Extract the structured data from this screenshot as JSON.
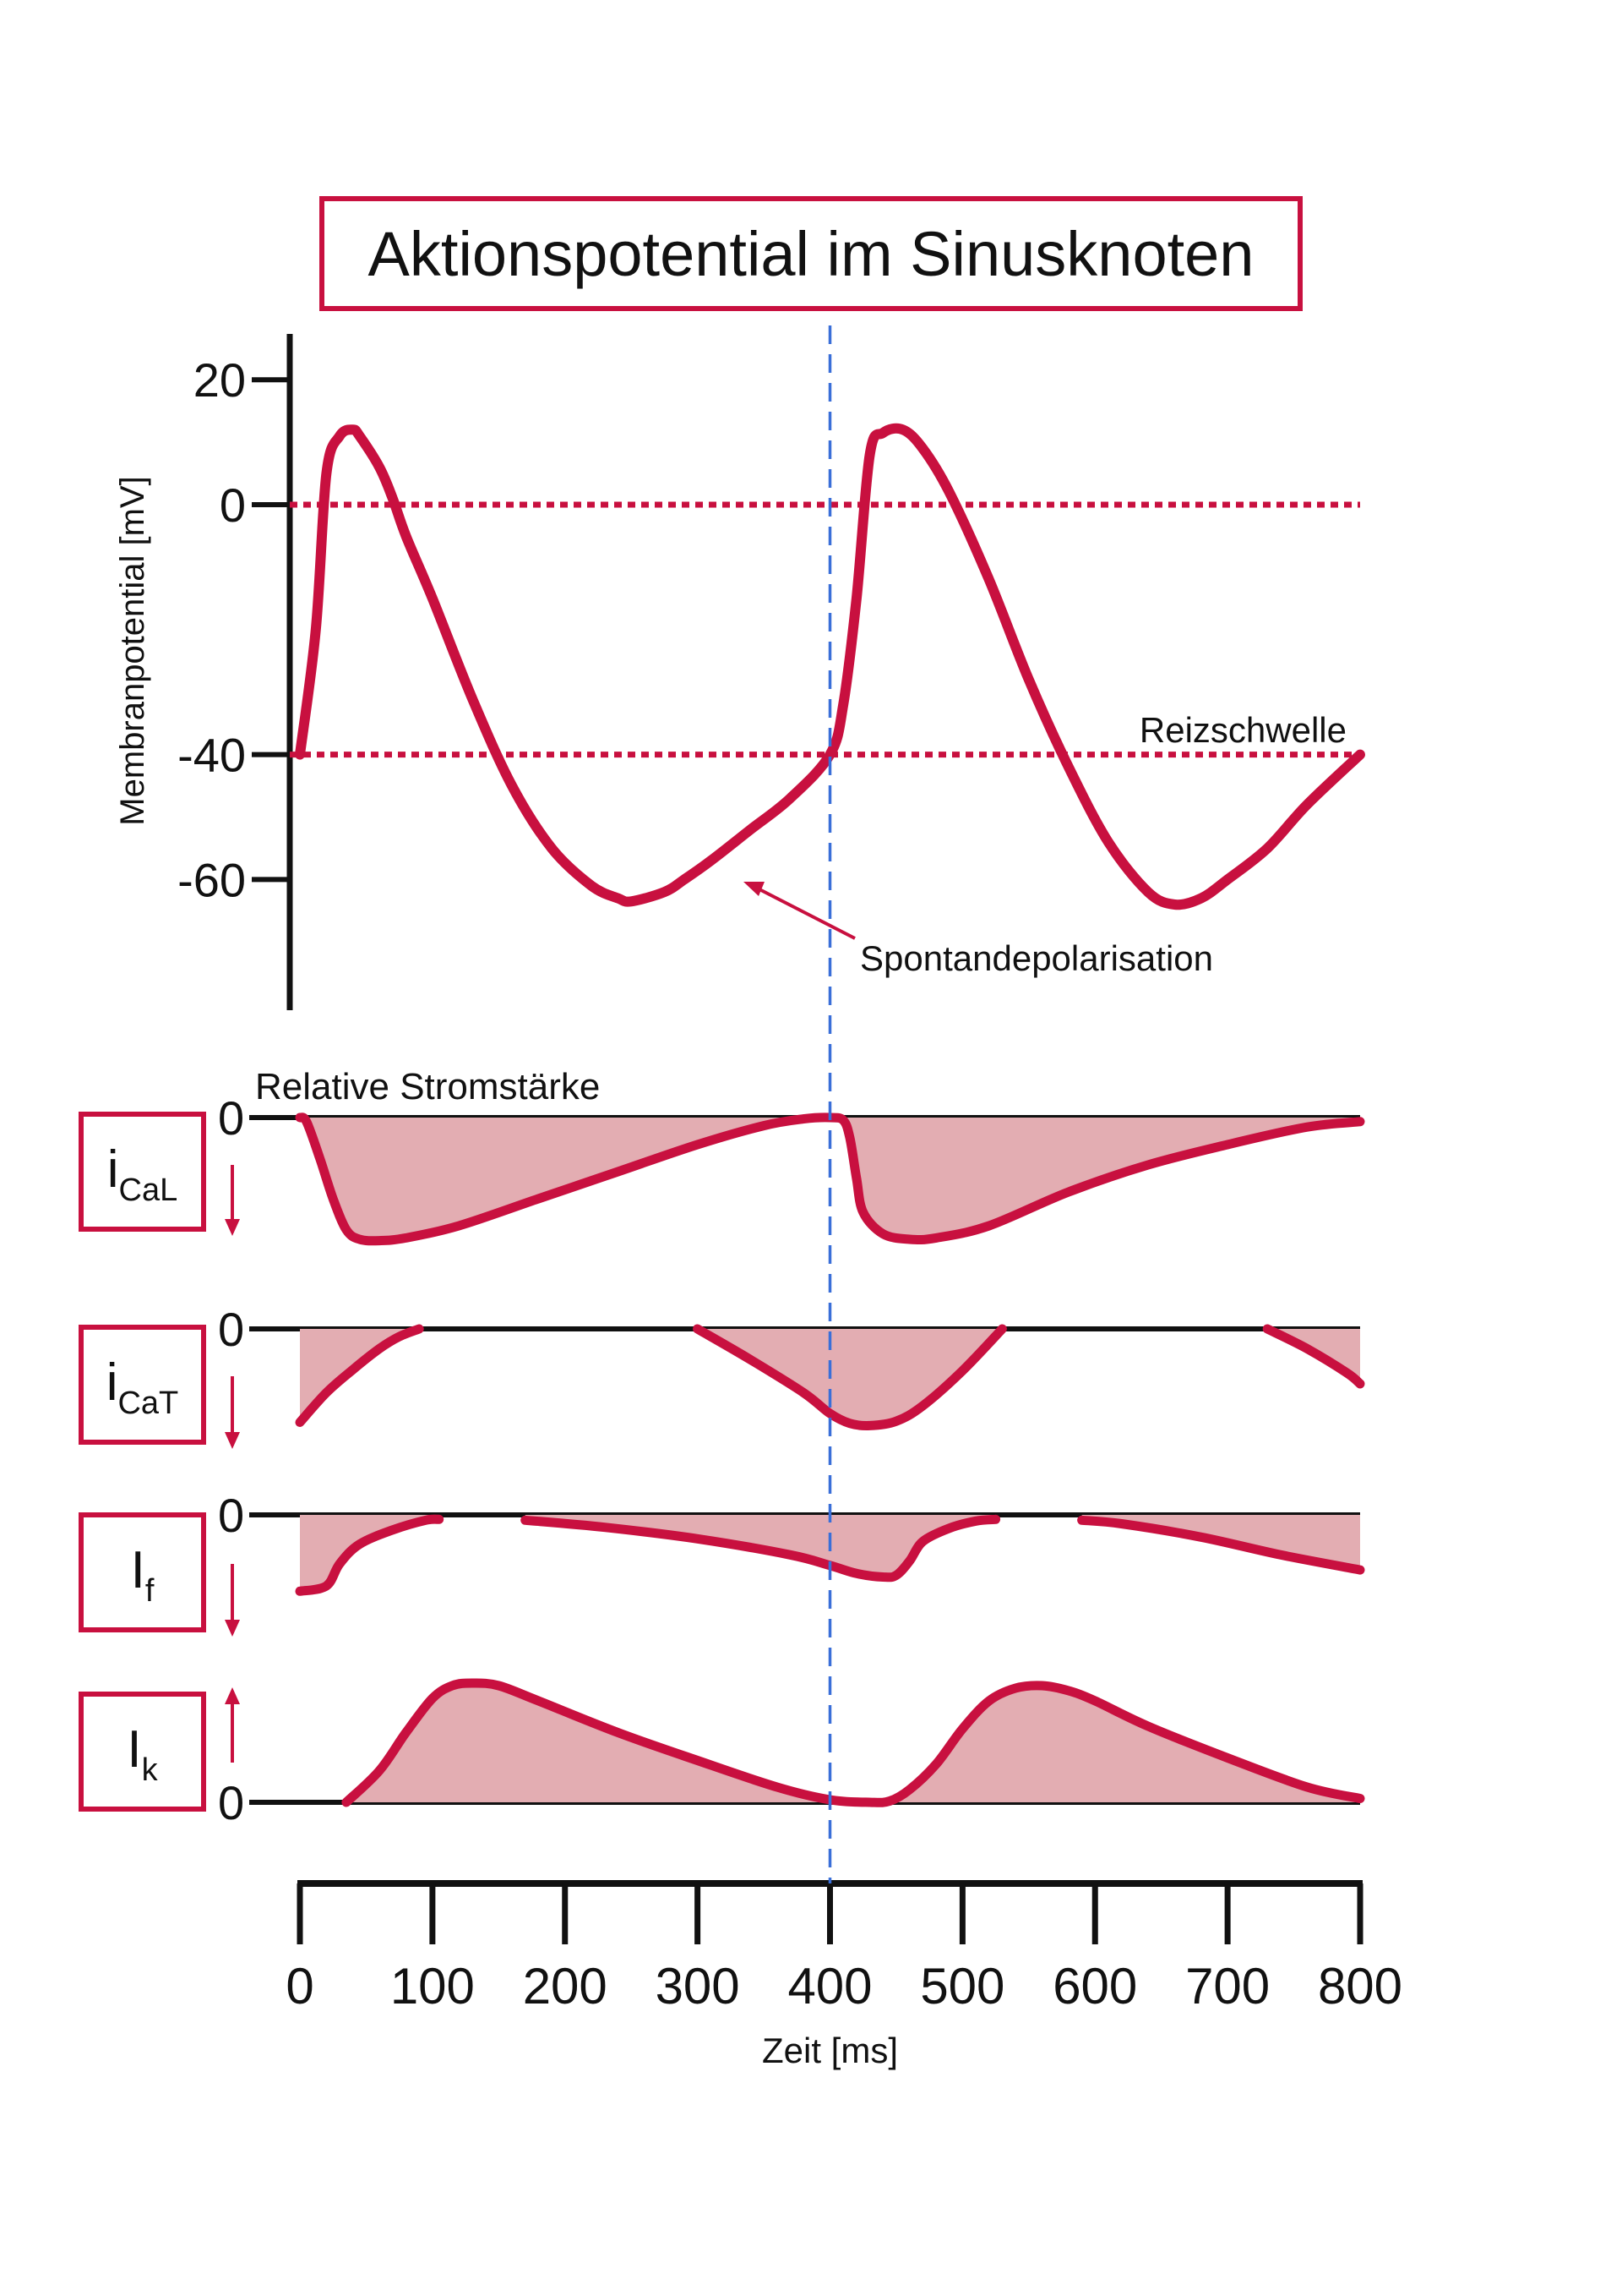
{
  "chart_data": {
    "type": "line",
    "title": "Aktionspotential im Sinusknoten",
    "colors": {
      "curve": "#c8103f",
      "fill": "#e3adb2",
      "reference_line": "#3a6fd8",
      "axis": "#111111"
    },
    "potential_panel": {
      "ylabel": "Membranpotential [mV]",
      "y_ticks": [
        20,
        0,
        -40,
        -60
      ],
      "ylim": [
        -80,
        25
      ],
      "threshold_label": "Reizschwelle",
      "annotation": "Spontandepolarisation",
      "dotted_levels_mv": [
        0,
        -40
      ],
      "series": [
        {
          "x": [
            0,
            12,
            20,
            30,
            40,
            45,
            60,
            70,
            80,
            100,
            130,
            160,
            190,
            220,
            240,
            250,
            275,
            290,
            310,
            340,
            370,
            400,
            410,
            420,
            430,
            440,
            455,
            470,
            490,
            520,
            550,
            580,
            610,
            640,
            660,
            680,
            700,
            730,
            760,
            800
          ],
          "y": [
            -40,
            -20,
            5,
            11,
            12,
            11,
            6,
            1,
            -5,
            -15,
            -31,
            -45,
            -55,
            -61,
            -63,
            -63.5,
            -62,
            -60,
            -57,
            -52,
            -47,
            -40,
            -32,
            -15,
            8,
            11.5,
            12,
            9,
            2,
            -12,
            -28,
            -42,
            -54,
            -62,
            -64,
            -63,
            -60,
            -55,
            -48,
            -40
          ]
        }
      ]
    },
    "current_panels": {
      "label": "Relative Stromstärke",
      "zero_label": "0",
      "series": [
        {
          "name": "iCaL",
          "main": "i",
          "sub": "CaL",
          "direction": "inward",
          "x": [
            0,
            5,
            15,
            25,
            35,
            45,
            60,
            80,
            120,
            180,
            240,
            300,
            350,
            380,
            400,
            410,
            415,
            420,
            425,
            440,
            460,
            480,
            520,
            580,
            640,
            700,
            760,
            800
          ],
          "y": [
            0,
            -0.03,
            -0.3,
            -0.6,
            -0.83,
            -0.9,
            -0.91,
            -0.89,
            -0.8,
            -0.6,
            -0.4,
            -0.2,
            -0.06,
            -0.01,
            0,
            -0.02,
            -0.15,
            -0.45,
            -0.7,
            -0.86,
            -0.9,
            -0.89,
            -0.8,
            -0.55,
            -0.35,
            -0.2,
            -0.07,
            -0.03
          ]
        },
        {
          "name": "iCaT",
          "main": "i",
          "sub": "CaT",
          "direction": "inward",
          "x": [
            0,
            20,
            40,
            60,
            75,
            90
          ],
          "y": [
            -0.85,
            -0.58,
            -0.37,
            -0.18,
            -0.07,
            0
          ],
          "segments": [
            {
              "x": [
                0,
                20,
                40,
                60,
                75,
                90
              ],
              "y": [
                -0.85,
                -0.58,
                -0.37,
                -0.18,
                -0.07,
                0
              ]
            },
            {
              "x": [
                300,
                340,
                380,
                400,
                415,
                430,
                450,
                470,
                500,
                530
              ],
              "y": [
                0,
                -0.28,
                -0.58,
                -0.77,
                -0.86,
                -0.88,
                -0.84,
                -0.7,
                -0.38,
                0
              ]
            },
            {
              "x": [
                730,
                760,
                790,
                800
              ],
              "y": [
                0,
                -0.18,
                -0.4,
                -0.5
              ]
            }
          ]
        },
        {
          "name": "If",
          "main": "I",
          "sub": "f",
          "direction": "inward",
          "x": [
            0,
            20,
            30,
            45,
            70,
            95,
            105
          ],
          "y": [
            -0.86,
            -0.8,
            -0.55,
            -0.33,
            -0.17,
            -0.06,
            -0.05
          ],
          "segments": [
            {
              "x": [
                0,
                20,
                30,
                45,
                70,
                95,
                105
              ],
              "y": [
                -0.86,
                -0.8,
                -0.55,
                -0.33,
                -0.17,
                -0.06,
                -0.05
              ]
            },
            {
              "x": [
                170,
                230,
                300,
                370,
                400,
                420,
                440,
                450,
                460,
                470,
                490,
                510,
                525
              ],
              "y": [
                -0.06,
                -0.14,
                -0.27,
                -0.45,
                -0.57,
                -0.66,
                -0.7,
                -0.68,
                -0.52,
                -0.3,
                -0.15,
                -0.07,
                -0.05
              ]
            },
            {
              "x": [
                590,
                620,
                680,
                740,
                800
              ],
              "y": [
                -0.06,
                -0.1,
                -0.25,
                -0.45,
                -0.62
              ]
            }
          ]
        },
        {
          "name": "Ik",
          "main": "I",
          "sub": "k",
          "direction": "outward",
          "x": [
            35,
            60,
            80,
            100,
            115,
            130,
            150,
            180,
            240,
            300,
            360,
            400,
            430,
            445,
            460,
            480,
            500,
            520,
            540,
            560,
            580,
            600,
            640,
            700,
            760,
            800
          ],
          "y": [
            0,
            0.25,
            0.55,
            0.82,
            0.92,
            0.94,
            0.92,
            0.8,
            0.55,
            0.33,
            0.12,
            0.02,
            0,
            0.01,
            0.1,
            0.3,
            0.58,
            0.8,
            0.9,
            0.92,
            0.88,
            0.8,
            0.6,
            0.35,
            0.12,
            0.03
          ]
        }
      ]
    },
    "x_axis": {
      "xlabel": "Zeit [ms]",
      "ticks": [
        0,
        100,
        200,
        300,
        400,
        500,
        600,
        700,
        800
      ],
      "xlim": [
        0,
        800
      ]
    },
    "reference_time_ms": 400
  }
}
